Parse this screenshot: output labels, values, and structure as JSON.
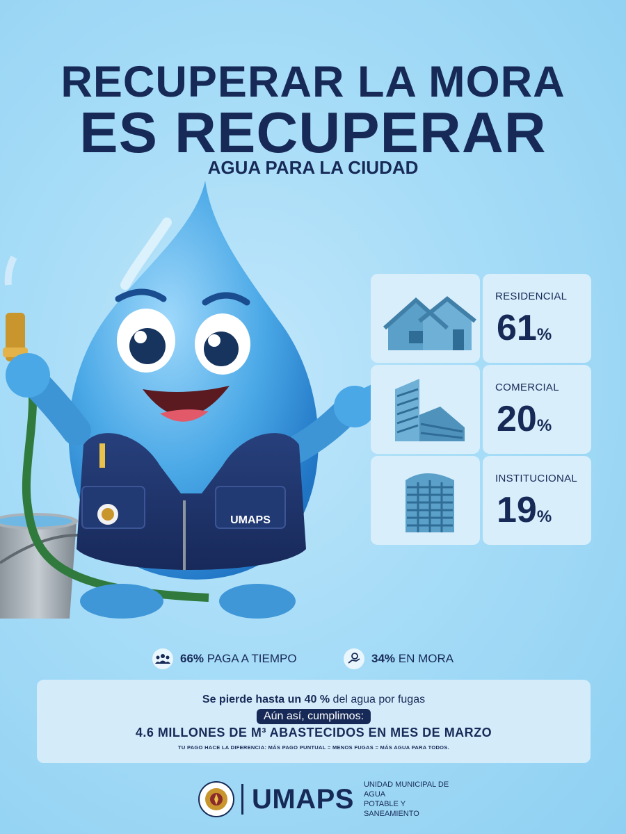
{
  "headline": {
    "line1": "RECUPERAR LA MORA",
    "line2": "ES RECUPERAR",
    "line3": "AGUA PARA LA CIUDAD"
  },
  "mascot": {
    "name": "water-drop-mascot",
    "vest_text": "UMAPS",
    "vest_subtext": "UNIDAD MUNICIPAL DE AGUA POTABLE Y SANEAMIENTO"
  },
  "categories": [
    {
      "label": "RESIDENCIAL",
      "value": "61",
      "pct": "%",
      "icon": "house-icon"
    },
    {
      "label": "COMERCIAL",
      "value": "20",
      "pct": "%",
      "icon": "commercial-building-icon"
    },
    {
      "label": "INSTITUCIONAL",
      "value": "19",
      "pct": "%",
      "icon": "institutional-building-icon"
    }
  ],
  "stats": {
    "on_time_value": "66%",
    "on_time_label": "PAGA A TIEMPO",
    "arrears_value": "34%",
    "arrears_label": "EN MORA"
  },
  "info": {
    "loss_bold": "Se pierde hasta un 40 %",
    "loss_rest": " del agua por fugas",
    "pill": "Aún así, cumplimos:",
    "supply": "4.6 MILLONES DE M³ ABASTECIDOS EN MES DE MARZO",
    "footnote": "TU PAGO HACE LA DIFERENCIA: MÁS PAGO PUNTUAL = MENOS FUGAS = MÁS AGUA PARA TODOS."
  },
  "footer": {
    "brand": "UMAPS",
    "tagline_line1": "UNIDAD MUNICIPAL DE AGUA",
    "tagline_line2": "POTABLE Y SANEAMIENTO",
    "seal_text": "ALCALDÍA MUNICIPAL DEL DISTRITO CENTRAL"
  },
  "colors": {
    "navy": "#172a57",
    "background": "#a6dcf7",
    "card": "#d8eefb",
    "drop": "#4aa8e6"
  }
}
